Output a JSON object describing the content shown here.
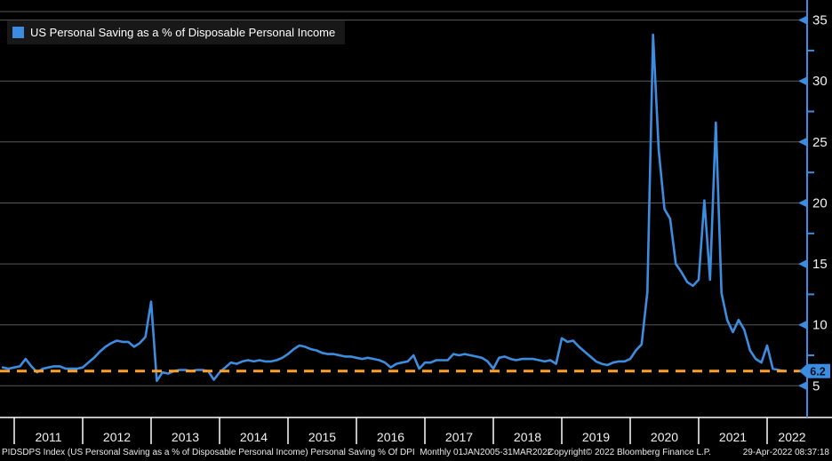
{
  "legend": {
    "label": "US Personal Saving as a % of Disposable Personal Income"
  },
  "status_bar": {
    "left": "PIDSDPS Index (US Personal Saving as a % of Disposable Personal Income) Personal Saving % Of DPI  Monthly 01JAN2005-31MAR2022",
    "center": "Copyright© 2022 Bloomberg Finance L.P.",
    "right": "29-Apr-2022 08:37:18"
  },
  "colors": {
    "background": "#000000",
    "series_line": "#3C8DE0",
    "axis": "#3C8DE0",
    "last_value_line": "#FFA028",
    "grid": "#585858",
    "axis_text": "#F2F2F2",
    "tag_text": "#001022",
    "legend_bg": "#181818",
    "legend_text": "#FFFFFF",
    "status_text": "#E9E9E9",
    "x_axis_line": "#FFFFFF"
  },
  "chart_data": {
    "type": "line",
    "title": "US Personal Saving as a % of Disposable Personal Income",
    "legend_position": "top-left",
    "grid": "horizontal-only",
    "x_axis": {
      "tick_labels": [
        "2011",
        "2012",
        "2013",
        "2014",
        "2015",
        "2016",
        "2017",
        "2018",
        "2019",
        "2020",
        "2021",
        "2022"
      ],
      "range": "monthly, Oct 2010 - Mar 2022"
    },
    "y_axis": {
      "side": "right",
      "ticks": [
        5,
        10,
        15,
        20,
        25,
        30,
        35
      ],
      "minor_ticks": [
        7.5,
        12.5,
        17.5,
        22.5,
        27.5,
        32.5
      ],
      "ylim": [
        2.4,
        35.7
      ]
    },
    "last_value": 6.2,
    "last_value_label": "6.2",
    "series": [
      {
        "name": "US Personal Saving as a % of Disposable Personal Income",
        "frequency": "monthly",
        "start": "2010-10",
        "end": "2022-03",
        "values": [
          6.5,
          6.4,
          6.5,
          6.6,
          7.2,
          6.6,
          6.1,
          6.4,
          6.5,
          6.6,
          6.6,
          6.4,
          6.4,
          6.4,
          6.5,
          6.9,
          7.3,
          7.8,
          8.2,
          8.5,
          8.7,
          8.6,
          8.6,
          8.2,
          8.5,
          9.0,
          11.9,
          5.4,
          6.1,
          6.0,
          6.2,
          6.3,
          6.3,
          6.2,
          6.3,
          6.3,
          6.2,
          5.5,
          6.1,
          6.5,
          6.9,
          6.8,
          7.0,
          7.1,
          7.0,
          7.1,
          7.0,
          7.0,
          7.1,
          7.3,
          7.6,
          8.0,
          8.3,
          8.2,
          8.0,
          7.9,
          7.7,
          7.6,
          7.6,
          7.5,
          7.4,
          7.4,
          7.3,
          7.2,
          7.3,
          7.2,
          7.1,
          6.9,
          6.5,
          6.8,
          6.9,
          7.0,
          7.5,
          6.4,
          6.9,
          6.9,
          7.1,
          7.1,
          7.1,
          7.6,
          7.5,
          7.6,
          7.5,
          7.4,
          7.3,
          7.0,
          6.4,
          7.3,
          7.4,
          7.2,
          7.1,
          7.2,
          7.2,
          7.2,
          7.1,
          7.0,
          7.1,
          6.8,
          8.9,
          8.6,
          8.7,
          8.2,
          7.8,
          7.4,
          7.0,
          6.8,
          6.7,
          6.9,
          7.0,
          7.0,
          7.2,
          7.9,
          8.4,
          12.7,
          33.8,
          24.3,
          19.5,
          18.7,
          15.0,
          14.3,
          13.5,
          13.2,
          13.7,
          20.2,
          13.7,
          26.6,
          12.6,
          10.4,
          9.4,
          10.4,
          9.6,
          7.9,
          7.2,
          6.9,
          8.3,
          6.4,
          6.3,
          6.2
        ]
      }
    ]
  }
}
